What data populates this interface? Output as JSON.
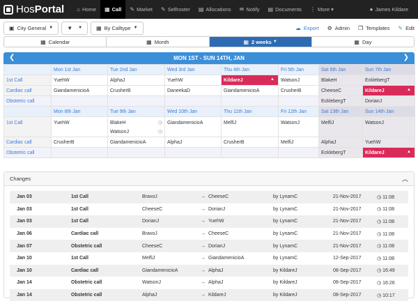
{
  "app": {
    "brand_a": "Hos",
    "brand_b": "Portal"
  },
  "nav": [
    {
      "icon": "⌂",
      "label": "Home",
      "active": false
    },
    {
      "icon": "▦",
      "label": "Call",
      "active": true
    },
    {
      "icon": "✎",
      "label": "Market",
      "active": false
    },
    {
      "icon": "✎",
      "label": "Selfroster",
      "active": false
    },
    {
      "icon": "▤",
      "label": "Allocations",
      "active": false
    },
    {
      "icon": "✉",
      "label": "Notify",
      "active": false
    },
    {
      "icon": "▤",
      "label": "Documents",
      "active": false
    },
    {
      "icon": "⋮",
      "label": "More",
      "active": false
    }
  ],
  "user": {
    "name": "James Kildare",
    "icon": "user-icon"
  },
  "toolbar": {
    "city_general": "City General",
    "filter_icon": "filter-icon",
    "by_calltype": "By Calltype",
    "export": "Export",
    "admin": "Admin",
    "templates": "Templates",
    "edit": "Edit"
  },
  "views": [
    "Calendar",
    "Month",
    "2 weeks",
    "Day"
  ],
  "active_view": "2 weeks",
  "calendar": {
    "title": "MON 1ST - SUN 14TH, JAN",
    "week1": {
      "days": [
        "Mon 1st Jan",
        "Tue 2nd Jan",
        "Wed 3rd Jan",
        "Thu 4th Jan",
        "Fri 5th Jan",
        "Sat 6th Jan",
        "Sun 7th Jan"
      ],
      "rows": [
        {
          "label": "1st Call",
          "cells": [
            "YuehW",
            "AlphaJ",
            "YuehW",
            "KildareJ",
            "WatsonJ",
            "BlakeH",
            "EcklebergT"
          ]
        },
        {
          "label": "Cardiac call",
          "cells": [
            "GiandamenicioA",
            "CrusherB",
            "DaneekaD",
            "GiandamenicioA",
            "CrusherB",
            "CheeseC",
            "KildareJ"
          ]
        },
        {
          "label": "Obstetric call",
          "cells": [
            "",
            "",
            "",
            "",
            "",
            "EcklebergT",
            "DorianJ"
          ]
        }
      ]
    },
    "week2": {
      "days": [
        "Mon 8th Jan",
        "Tue 9th Jan",
        "Wed 10th Jan",
        "Thu 11th Jan",
        "Fri 12th Jan",
        "Sat 13th Jan",
        "Sun 14th Jan"
      ],
      "first_call": [
        "YuehW",
        "BlakeH",
        "GiandamenicioA",
        "MelfiJ",
        "WatsonJ",
        "MelfiJ",
        "WatsonJ"
      ],
      "first_call_extra": "WatsonJ",
      "cardiac": [
        "CrusherB",
        "GiandamenicioA",
        "AlphaJ",
        "CrusherB",
        "MelfiJ",
        "AlphaJ",
        "YuehW"
      ],
      "obstetric": [
        "",
        "",
        "",
        "",
        "",
        "EcklebergT",
        "KildareJ"
      ],
      "labels": {
        "first": "1st Call",
        "cardiac": "Cardiac call",
        "obstetric": "Obstetric call"
      }
    }
  },
  "changes": {
    "title": "Changes",
    "rows": [
      {
        "date": "Jan 03",
        "call": "1st Call",
        "from": "BravoJ",
        "to": "CheeseC",
        "by": "by LynamC",
        "when": "21-Nov-2017",
        "time": "11:08"
      },
      {
        "date": "Jan 03",
        "call": "1st Call",
        "from": "CheeseC",
        "to": "DorianJ",
        "by": "by LynamC",
        "when": "21-Nov-2017",
        "time": "11:08"
      },
      {
        "date": "Jan 03",
        "call": "1st Call",
        "from": "DorianJ",
        "to": "YuehW",
        "by": "by LynamC",
        "when": "21-Nov-2017",
        "time": "11:08"
      },
      {
        "date": "Jan 06",
        "call": "Cardiac call",
        "from": "BravoJ",
        "to": "CheeseC",
        "by": "by LynamC",
        "when": "21-Nov-2017",
        "time": "11:08"
      },
      {
        "date": "Jan 07",
        "call": "Obstetric call",
        "from": "CheeseC",
        "to": "DorianJ",
        "by": "by LynamC",
        "when": "21-Nov-2017",
        "time": "11:08"
      },
      {
        "date": "Jan 10",
        "call": "1st Call",
        "from": "MelfiJ",
        "to": "GiandamenicioA",
        "by": "by LynamC",
        "when": "12-Sep-2017",
        "time": "11:08"
      },
      {
        "date": "Jan 10",
        "call": "Cardiac call",
        "from": "GiandamenicioA",
        "to": "AlphaJ",
        "by": "by KildareJ",
        "when": "08-Sep-2017",
        "time": "16:49"
      },
      {
        "date": "Jan 14",
        "call": "Obstetric call",
        "from": "WatsonJ",
        "to": "AlphaJ",
        "by": "by KildareJ",
        "when": "08-Sep-2017",
        "time": "16:26"
      },
      {
        "date": "Jan 14",
        "call": "Obstetric call",
        "from": "AlphaJ",
        "to": "KildareJ",
        "by": "by KildareJ",
        "when": "08-Sep-2017",
        "time": "10:17"
      }
    ]
  },
  "colors": {
    "accent": "#3a8fd8",
    "active_view": "#2d6cb4",
    "highlight": "#d92b5a",
    "link": "#3a7bd5"
  }
}
